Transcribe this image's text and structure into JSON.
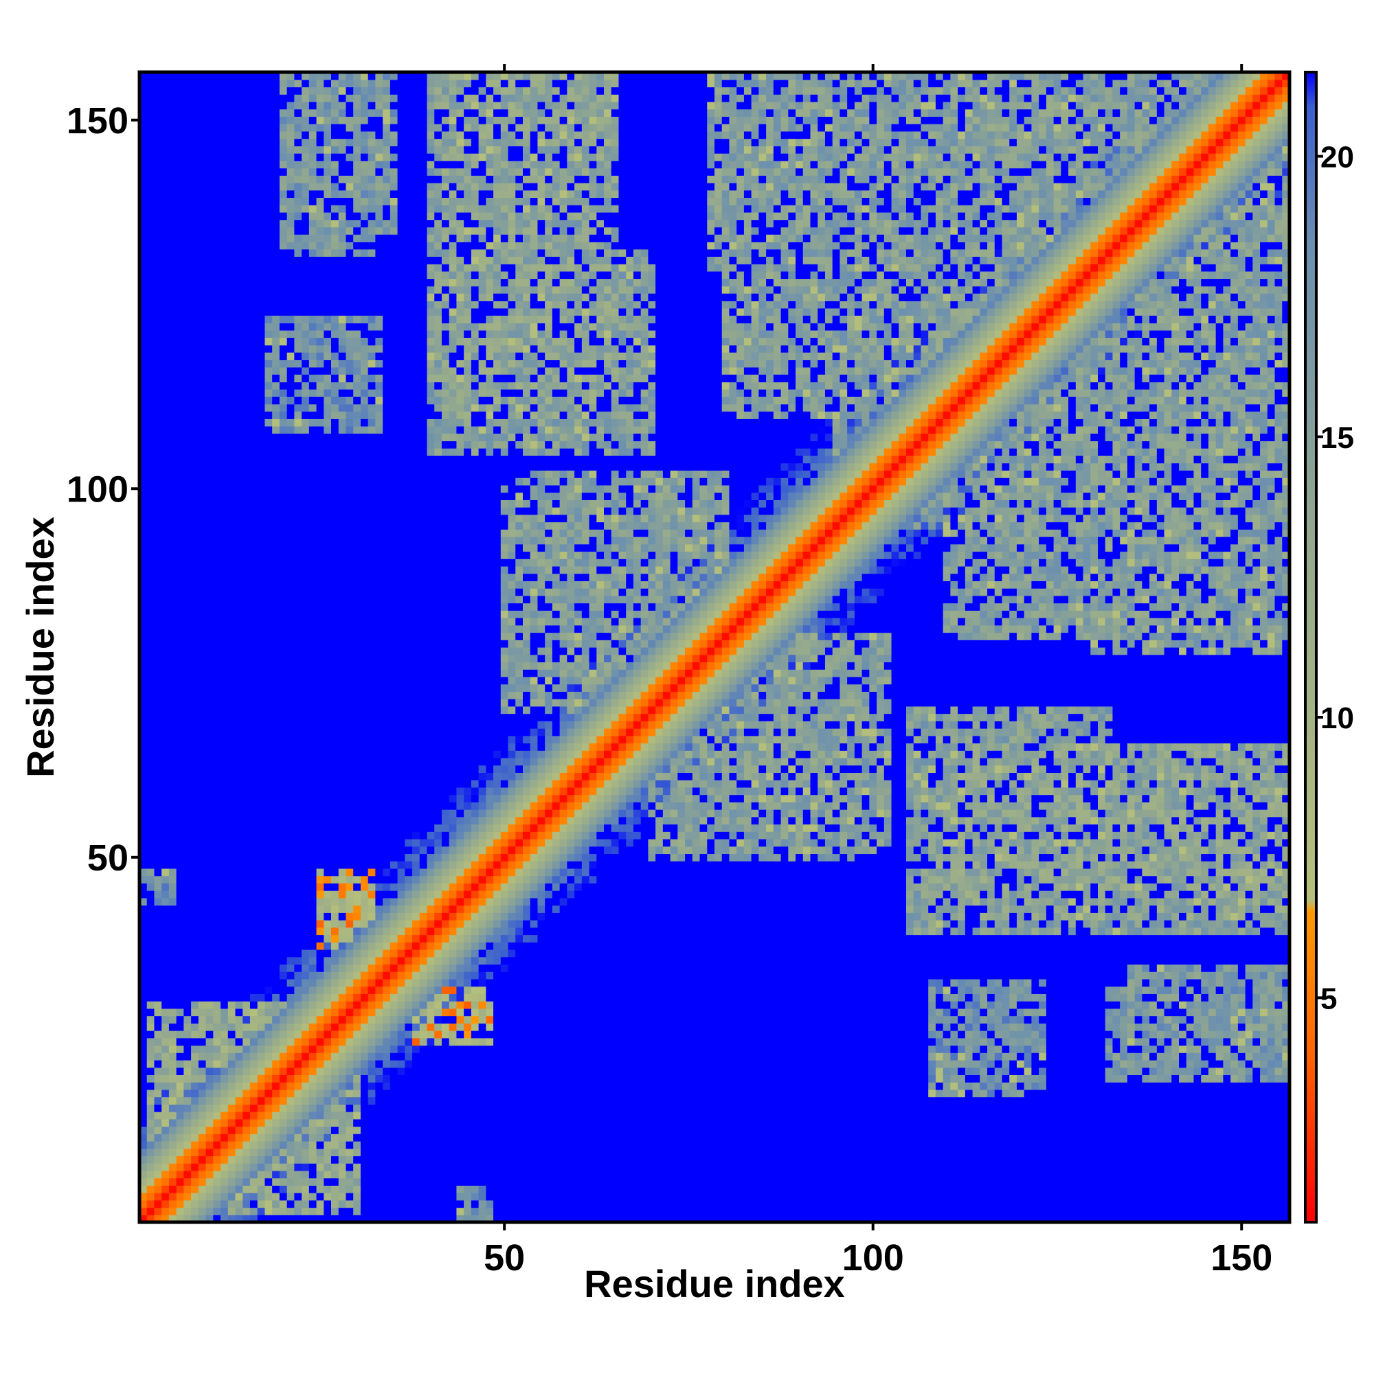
{
  "chart_data": {
    "type": "heatmap",
    "title": "",
    "xlabel": "Residue index",
    "ylabel": "Residue index",
    "xlim": [
      1,
      156
    ],
    "ylim": [
      1,
      156
    ],
    "x_ticks": [
      50,
      100,
      150
    ],
    "y_ticks": [
      50,
      100,
      150
    ],
    "colorbar": {
      "ticks": [
        5,
        10,
        15,
        20
      ],
      "range": [
        1,
        21.5
      ],
      "colors": [
        "#ff0000",
        "#ff9900",
        "#9fb87a",
        "#6a8fb0",
        "#0000ff"
      ]
    },
    "background_value": 21,
    "diagonal_profile": [
      {
        "offset": 0,
        "value": 1.5
      },
      {
        "offset": 1,
        "value": 3.8
      },
      {
        "offset": 2,
        "value": 5.5
      },
      {
        "offset": 3,
        "value": 6.2
      },
      {
        "offset": 4,
        "value": 7.8
      },
      {
        "offset": 5,
        "value": 9.5
      },
      {
        "offset": 6,
        "value": 11.2
      },
      {
        "offset": 7,
        "value": 13
      },
      {
        "offset": 8,
        "value": 15
      },
      {
        "offset": 9,
        "value": 17.5
      }
    ],
    "contact_patches": [
      {
        "x": [
          2,
          30
        ],
        "y": [
          2,
          30
        ],
        "value": 11
      },
      {
        "x": [
          25,
          32
        ],
        "y": [
          38,
          48
        ],
        "value": 7
      },
      {
        "x": [
          38,
          48
        ],
        "y": [
          25,
          32
        ],
        "value": 7
      },
      {
        "x": [
          20,
          32
        ],
        "y": [
          132,
          157
        ],
        "value": 14
      },
      {
        "x": [
          40,
          65
        ],
        "y": [
          128,
          157
        ],
        "value": 13
      },
      {
        "x": [
          40,
          70
        ],
        "y": [
          105,
          132
        ],
        "value": 13
      },
      {
        "x": [
          18,
          33
        ],
        "y": [
          108,
          123
        ],
        "value": 15
      },
      {
        "x": [
          52,
          80
        ],
        "y": [
          80,
          102
        ],
        "value": 13
      },
      {
        "x": [
          70,
          100
        ],
        "y": [
          50,
          75
        ],
        "value": 13
      },
      {
        "x": [
          78,
          118
        ],
        "y": [
          130,
          157
        ],
        "value": 13
      },
      {
        "x": [
          95,
          157
        ],
        "y": [
          100,
          157
        ],
        "value": 13
      },
      {
        "x": [
          110,
          157
        ],
        "y": [
          80,
          110
        ],
        "value": 13
      },
      {
        "x": [
          110,
          135
        ],
        "y": [
          42,
          65
        ],
        "value": 12
      },
      {
        "x": [
          137,
          157
        ],
        "y": [
          42,
          65
        ],
        "value": 12
      },
      {
        "x": [
          110,
          122
        ],
        "y": [
          22,
          32
        ],
        "value": 15
      },
      {
        "x": [
          135,
          157
        ],
        "y": [
          20,
          35
        ],
        "value": 14
      },
      {
        "x": [
          1,
          5
        ],
        "y": [
          44,
          48
        ],
        "value": 15
      }
    ]
  }
}
